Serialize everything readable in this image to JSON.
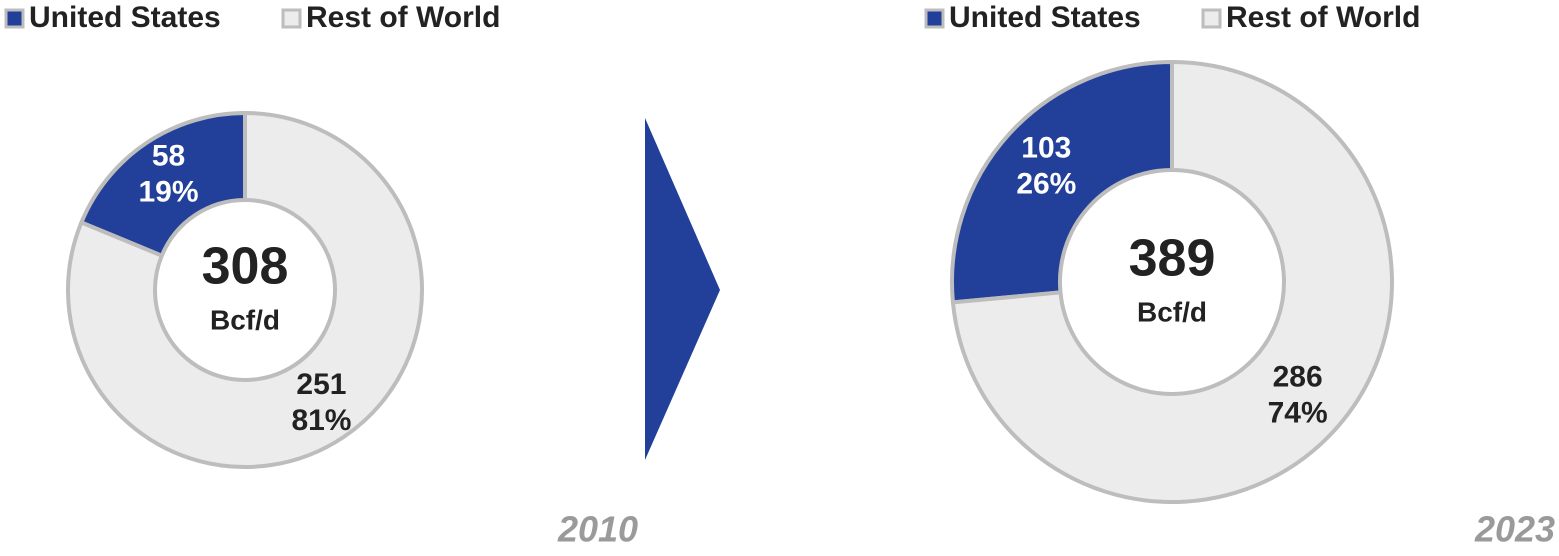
{
  "chart_data": [
    {
      "type": "donut",
      "year": "2010",
      "categories": [
        "United States",
        "Rest of World"
      ],
      "values": [
        58,
        251
      ],
      "percent_labels": [
        "19%",
        "81%"
      ],
      "colors": [
        "#22409a",
        "#ececec"
      ],
      "total": 308,
      "unit": "Bcf/d"
    },
    {
      "type": "donut",
      "year": "2023",
      "categories": [
        "United States",
        "Rest of World"
      ],
      "values": [
        103,
        286
      ],
      "percent_labels": [
        "26%",
        "74%"
      ],
      "colors": [
        "#22409a",
        "#ececec"
      ],
      "total": 389,
      "unit": "Bcf/d"
    }
  ]
}
